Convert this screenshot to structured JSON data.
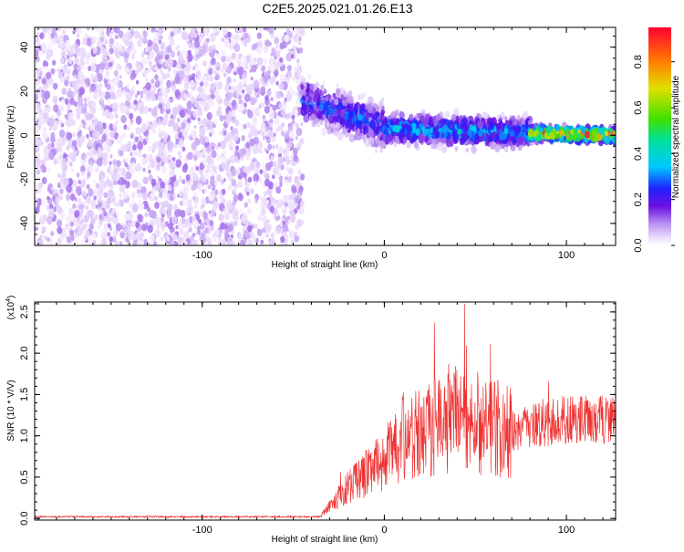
{
  "title": "C2E5.2025.021.01.26.E13",
  "chart_data": [
    {
      "type": "heatmap",
      "name": "spectrogram",
      "xlabel": "Height of straight line (km)",
      "ylabel": "Frequency (Hz)",
      "xlim": [
        -192,
        127
      ],
      "ylim": [
        -50,
        49
      ],
      "xticks": [
        -100,
        0,
        100
      ],
      "yticks": [
        -40,
        -20,
        0,
        20,
        40
      ],
      "colorbar": {
        "label": "Normalized spectral amplitude",
        "range": [
          0.0,
          0.95
        ],
        "ticks": [
          0.0,
          0.2,
          0.4,
          0.6,
          0.8
        ],
        "tick_labels": [
          "0.0",
          "0.2",
          "0.4",
          "0.6",
          "0.8"
        ]
      },
      "regions": [
        {
          "x_range": [
            -192,
            -45
          ],
          "freq_range": [
            -50,
            49
          ],
          "amplitude": [
            0.03,
            0.12
          ]
        },
        {
          "x_range": [
            -45,
            0
          ],
          "freq_center": [
            16,
            4
          ],
          "freq_halfwidth": 9,
          "amplitude": [
            0.1,
            0.35
          ]
        },
        {
          "x_range": [
            0,
            80
          ],
          "freq_center": [
            3,
            1
          ],
          "freq_halfwidth": 6,
          "amplitude": [
            0.2,
            0.45
          ]
        },
        {
          "x_range": [
            80,
            127
          ],
          "freq_center": [
            1,
            0
          ],
          "freq_halfwidth": 3,
          "amplitude": [
            0.5,
            0.95
          ]
        }
      ]
    },
    {
      "type": "line",
      "name": "snr",
      "xlabel": "Height of straight line (km)",
      "ylabel": "SNR (10 * V/V)",
      "y_scale_label": "(x10",
      "y_scale_exp": "4",
      "xlim": [
        -192,
        127
      ],
      "ylim": [
        -0.02,
        2.62
      ],
      "xticks": [
        -100,
        0,
        100
      ],
      "yticks": [
        0.0,
        0.5,
        1.0,
        1.5,
        2.0,
        2.5
      ],
      "ytick_labels": [
        "0.0",
        "0.5",
        "1.0",
        "1.5",
        "2.0",
        "2.5"
      ],
      "color": "#ee3333",
      "envelope": [
        {
          "x": -192,
          "y": 0.02
        },
        {
          "x": -35,
          "y": 0.02
        },
        {
          "x": -30,
          "y": 0.15
        },
        {
          "x": -20,
          "y": 0.38
        },
        {
          "x": -10,
          "y": 0.55
        },
        {
          "x": 0,
          "y": 0.72
        },
        {
          "x": 10,
          "y": 0.9
        },
        {
          "x": 20,
          "y": 1.05
        },
        {
          "x": 30,
          "y": 1.15
        },
        {
          "x": 40,
          "y": 1.2
        },
        {
          "x": 50,
          "y": 1.18
        },
        {
          "x": 60,
          "y": 1.1
        },
        {
          "x": 70,
          "y": 1.05
        },
        {
          "x": 80,
          "y": 1.1
        },
        {
          "x": 100,
          "y": 1.2
        },
        {
          "x": 127,
          "y": 1.2
        }
      ],
      "peak": {
        "x": 44,
        "y": 2.6
      }
    }
  ]
}
